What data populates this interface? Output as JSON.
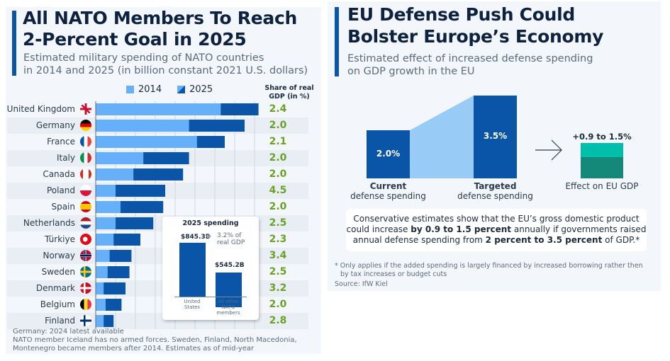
{
  "left": {
    "title_line1": "All NATO Members To Reach",
    "title_line2": "2-Percent Goal in 2025",
    "subtitle_line1": "Estimated military spending of NATO countries",
    "subtitle_line2": "in 2014 and 2025 (in billion constant 2021 U.S. dollars)",
    "share_header_line1": "Share of real",
    "share_header_line2": "GDP (in %)",
    "inset": {
      "title": "2025 spending",
      "us_value": "$845.3B",
      "us_note_line1": "3.2% of",
      "us_note_line2": "real GDP",
      "others_value": "$545.2B",
      "us_label_line1": "United",
      "us_label_line2": "States",
      "others_label_line1": "All other",
      "others_label_line2": "NATO",
      "others_label_line3": "members"
    },
    "footnote_line1": "Germany: 2024 latest available",
    "footnote_line2": "NATO member Iceland has no armed forces. Sweden, Finland, North Macedonia,",
    "footnote_line3": "Montenegro became members after 2014. Estimates as of mid-year"
  },
  "right": {
    "title_line1": "EU Defense Push Could",
    "title_line2": "Bolster Europe’s Economy",
    "subtitle_line1": "Estimated effect of increased defense spending",
    "subtitle_line2": "on GDP growth in the EU",
    "current_value": "2.0%",
    "targeted_value": "3.5%",
    "current_label_bold": "Current",
    "current_label": "defense spending",
    "targeted_label_bold": "Targeted",
    "targeted_label": "defense spending",
    "effect_value": "+0.9 to 1.5%",
    "effect_label": "Effect on EU GDP",
    "callout_part1": "Conservative estimates show that the EU’s gross domestic product could increase ",
    "callout_bold1": "by 0.9 to 1.5 percent",
    "callout_part2": " annually if governments raised annual defense spending from ",
    "callout_bold2": "2 percent to 3.5 percent",
    "callout_part3": " of GDP.*",
    "footnote_line1": "* Only applies if the added spending is largely financed by increased borrowing rather then",
    "footnote_line2": "by tax increases or budget cuts",
    "source": "Source: IfW Kiel"
  },
  "colors": {
    "c2014": "#66b0fa",
    "c2025": "#0b55a8",
    "share": "#6aa126",
    "teal_light": "#00bfaa",
    "teal_dark": "#14897a",
    "connector": "#99cbf7"
  },
  "chart_data": [
    {
      "type": "bar",
      "orientation": "horizontal",
      "stacked_overlay": true,
      "title": "All NATO Members To Reach 2-Percent Goal in 2025",
      "xlabel": "",
      "ylabel": "",
      "xlim": [
        0,
        80
      ],
      "grid": true,
      "legend": "top-center",
      "legend_entries": [
        "2014",
        "2025"
      ],
      "categories": [
        "United Kingdom",
        "Germany",
        "France",
        "Italy",
        "Canada",
        "Poland",
        "Spain",
        "Netherlands",
        "Türkiye",
        "Norway",
        "Sweden",
        "Denmark",
        "Belgium",
        "Finland"
      ],
      "flags": [
        "gb",
        "de",
        "fr",
        "it",
        "ca",
        "pl",
        "es",
        "nl",
        "tr",
        "no",
        "se",
        "dk",
        "be",
        "fi"
      ],
      "series": [
        {
          "name": "2014",
          "values": [
            63,
            47,
            51,
            24,
            19,
            10,
            12.5,
            10,
            9,
            7,
            6,
            4,
            5,
            4
          ]
        },
        {
          "name": "2025",
          "values": [
            82,
            75,
            65,
            47,
            44,
            35,
            34,
            29,
            22.5,
            18,
            17,
            15,
            13,
            9
          ]
        }
      ],
      "share_of_gdp": [
        "2.4",
        "2.0",
        "2.1",
        "2.0",
        "2.0",
        "4.5",
        "2.0",
        "2.5",
        "2.3",
        "3.4",
        "2.5",
        "3.2",
        "2.0",
        "2.8"
      ]
    },
    {
      "type": "bar",
      "title": "2025 spending",
      "categories": [
        "United States",
        "All other NATO members"
      ],
      "values": [
        845.3,
        545.2
      ],
      "ylim": [
        0,
        845.3
      ]
    },
    {
      "type": "bar",
      "title": "EU Defense Push Could Bolster Europe’s Economy",
      "categories": [
        "Current defense spending",
        "Targeted defense spending"
      ],
      "values": [
        2.0,
        3.5
      ],
      "effect_on_gdp_range": [
        0.9,
        1.5
      ]
    }
  ]
}
